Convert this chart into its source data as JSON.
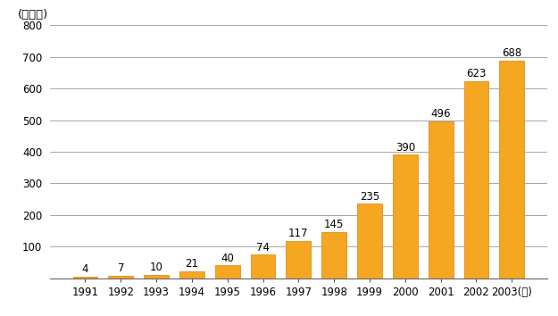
{
  "years": [
    "1991",
    "1992",
    "1993",
    "1994",
    "1995",
    "1996",
    "1997",
    "1998",
    "1999",
    "2000",
    "2001",
    "2002",
    "2003"
  ],
  "values": [
    4,
    7,
    10,
    21,
    40,
    74,
    117,
    145,
    235,
    390,
    496,
    623,
    688
  ],
  "bar_color": "#f5a623",
  "bar_edge_color": "#e0901a",
  "ylabel": "(百万人)",
  "xlabel_suffix": "(年)",
  "ylim": [
    0,
    800
  ],
  "yticks": [
    100,
    200,
    300,
    400,
    500,
    600,
    700,
    800
  ],
  "background_color": "#ffffff",
  "grid_color": "#999999",
  "label_fontsize": 8.5,
  "axis_fontsize": 8.5,
  "ylabel_fontsize": 9.5,
  "bar_width": 0.7
}
